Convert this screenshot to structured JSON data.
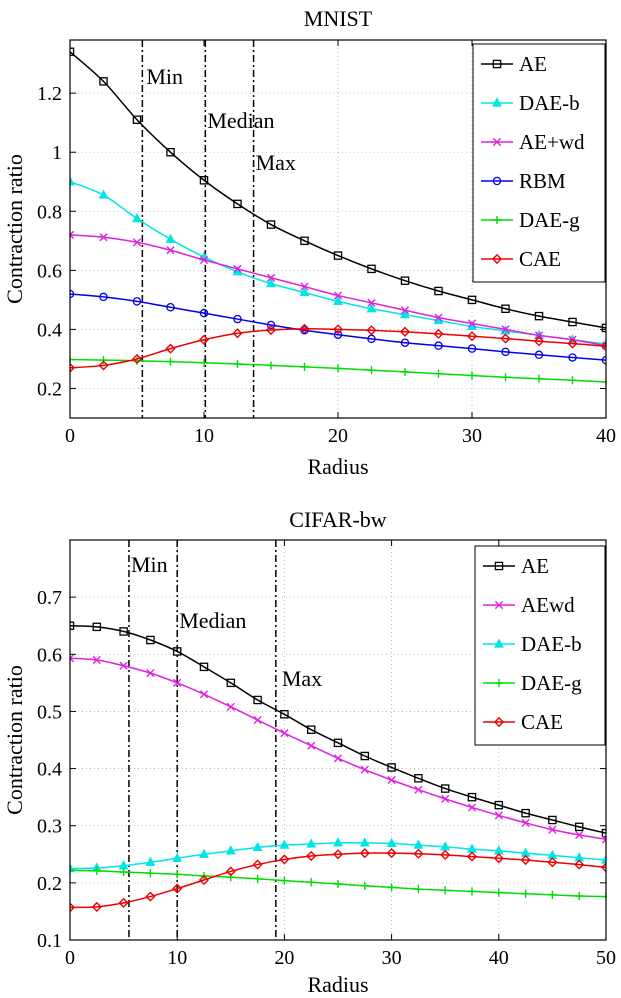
{
  "chart_data": [
    {
      "type": "line",
      "title": "MNIST",
      "xlabel": "Radius",
      "ylabel": "Contraction ratio",
      "xlim": [
        0,
        40
      ],
      "ylim": [
        0.1,
        1.38
      ],
      "xticks": [
        0,
        10,
        20,
        30,
        40
      ],
      "yticks": [
        0.2,
        0.4,
        0.6,
        0.8,
        1,
        1.2
      ],
      "ytick_labels": [
        "0.2",
        "0.4",
        "0.6",
        "0.8",
        "1",
        "1.2"
      ],
      "grid": true,
      "legend_position": "top-right",
      "x": [
        0,
        2.5,
        5,
        7.5,
        10,
        12.5,
        15,
        17.5,
        20,
        22.5,
        25,
        27.5,
        30,
        32.5,
        35,
        37.5,
        40
      ],
      "vlines": [
        {
          "x": 5.4,
          "label": "Min"
        },
        {
          "x": 10.1,
          "label": "Median"
        },
        {
          "x": 13.7,
          "label": "Max"
        }
      ],
      "series": [
        {
          "name": "AE",
          "color": "#000000",
          "marker": "square",
          "values": [
            1.34,
            1.24,
            1.11,
            1.0,
            0.905,
            0.825,
            0.755,
            0.7,
            0.65,
            0.605,
            0.565,
            0.53,
            0.5,
            0.47,
            0.445,
            0.425,
            0.405
          ]
        },
        {
          "name": "DAE-b",
          "color": "#00e5e5",
          "marker": "triangle",
          "values": [
            0.9,
            0.855,
            0.775,
            0.705,
            0.645,
            0.595,
            0.555,
            0.525,
            0.495,
            0.47,
            0.45,
            0.43,
            0.41,
            0.395,
            0.38,
            0.365,
            0.35
          ]
        },
        {
          "name": "AE+wd",
          "color": "#e020e0",
          "marker": "x",
          "values": [
            0.72,
            0.712,
            0.695,
            0.668,
            0.635,
            0.605,
            0.575,
            0.545,
            0.515,
            0.49,
            0.465,
            0.44,
            0.42,
            0.4,
            0.38,
            0.365,
            0.345
          ]
        },
        {
          "name": "RBM",
          "color": "#0000ee",
          "marker": "circle",
          "values": [
            0.52,
            0.51,
            0.495,
            0.475,
            0.455,
            0.435,
            0.415,
            0.397,
            0.382,
            0.368,
            0.355,
            0.345,
            0.335,
            0.324,
            0.314,
            0.305,
            0.296
          ]
        },
        {
          "name": "DAE-g",
          "color": "#00dd00",
          "marker": "plus",
          "values": [
            0.298,
            0.296,
            0.294,
            0.291,
            0.287,
            0.283,
            0.278,
            0.273,
            0.268,
            0.262,
            0.256,
            0.25,
            0.244,
            0.238,
            0.233,
            0.228,
            0.222
          ]
        },
        {
          "name": "CAE",
          "color": "#ee0000",
          "marker": "diamond",
          "values": [
            0.27,
            0.278,
            0.3,
            0.335,
            0.365,
            0.387,
            0.398,
            0.402,
            0.4,
            0.397,
            0.392,
            0.385,
            0.377,
            0.369,
            0.36,
            0.352,
            0.343
          ]
        }
      ]
    },
    {
      "type": "line",
      "title": "CIFAR-bw",
      "xlabel": "Radius",
      "ylabel": "Contraction ratio",
      "xlim": [
        0,
        50
      ],
      "ylim": [
        0.1,
        0.8
      ],
      "xticks": [
        0,
        10,
        20,
        30,
        40,
        50
      ],
      "yticks": [
        0.1,
        0.2,
        0.3,
        0.4,
        0.5,
        0.6,
        0.7
      ],
      "ytick_labels": [
        "0.1",
        "0.2",
        "0.3",
        "0.4",
        "0.5",
        "0.6",
        "0.7"
      ],
      "grid": true,
      "legend_position": "top-right",
      "x": [
        0,
        2.5,
        5,
        7.5,
        10,
        12.5,
        15,
        17.5,
        20,
        22.5,
        25,
        27.5,
        30,
        32.5,
        35,
        37.5,
        40,
        42.5,
        45,
        47.5,
        50
      ],
      "vlines": [
        {
          "x": 5.5,
          "label": "Min"
        },
        {
          "x": 10,
          "label": "Median"
        },
        {
          "x": 19.2,
          "label": "Max"
        }
      ],
      "series": [
        {
          "name": "AE",
          "color": "#000000",
          "marker": "square",
          "values": [
            0.65,
            0.648,
            0.64,
            0.625,
            0.605,
            0.578,
            0.55,
            0.52,
            0.495,
            0.468,
            0.445,
            0.422,
            0.402,
            0.383,
            0.365,
            0.35,
            0.336,
            0.322,
            0.31,
            0.298,
            0.287
          ]
        },
        {
          "name": "AEwd",
          "color": "#e020e0",
          "marker": "x",
          "values": [
            0.593,
            0.59,
            0.58,
            0.567,
            0.55,
            0.53,
            0.508,
            0.485,
            0.462,
            0.44,
            0.418,
            0.398,
            0.38,
            0.363,
            0.347,
            0.332,
            0.318,
            0.305,
            0.293,
            0.284,
            0.276
          ]
        },
        {
          "name": "DAE-b",
          "color": "#00e5e5",
          "marker": "triangle",
          "values": [
            0.225,
            0.226,
            0.23,
            0.236,
            0.243,
            0.25,
            0.256,
            0.262,
            0.266,
            0.268,
            0.27,
            0.27,
            0.269,
            0.266,
            0.263,
            0.259,
            0.256,
            0.252,
            0.248,
            0.244,
            0.24
          ]
        },
        {
          "name": "DAE-g",
          "color": "#00dd00",
          "marker": "plus",
          "values": [
            0.222,
            0.221,
            0.219,
            0.217,
            0.215,
            0.212,
            0.21,
            0.207,
            0.204,
            0.201,
            0.198,
            0.195,
            0.192,
            0.189,
            0.187,
            0.185,
            0.183,
            0.181,
            0.179,
            0.177,
            0.176
          ]
        },
        {
          "name": "CAE",
          "color": "#ee0000",
          "marker": "diamond",
          "values": [
            0.157,
            0.158,
            0.165,
            0.176,
            0.19,
            0.205,
            0.22,
            0.232,
            0.241,
            0.247,
            0.25,
            0.252,
            0.252,
            0.251,
            0.249,
            0.246,
            0.243,
            0.24,
            0.236,
            0.232,
            0.227
          ]
        }
      ]
    }
  ]
}
